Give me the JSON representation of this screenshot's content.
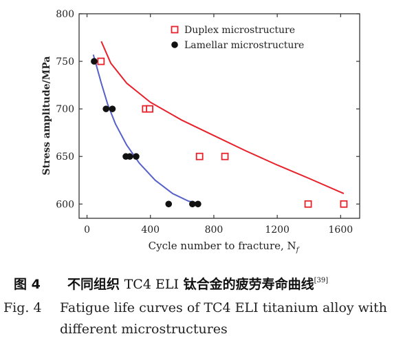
{
  "chart_data": {
    "type": "scatter",
    "xlabel": "Cycle number to fracture, N",
    "xlabel_subscript": "f",
    "ylabel": "Stress amplitude/MPa",
    "xlim": [
      -50,
      1720
    ],
    "ylim": [
      585,
      800
    ],
    "xticks": [
      0,
      400,
      800,
      1200,
      1600
    ],
    "yticks": [
      600,
      650,
      700,
      750,
      800
    ],
    "legend_position": "top-right",
    "series": [
      {
        "name": "Duplex microstructure",
        "marker": "open-square",
        "color": "#e8202a",
        "points": [
          [
            88,
            750
          ],
          [
            370,
            700
          ],
          [
            395,
            700
          ],
          [
            710,
            650
          ],
          [
            870,
            650
          ],
          [
            1395,
            600
          ],
          [
            1620,
            600
          ]
        ],
        "fit_curve": [
          [
            90,
            771
          ],
          [
            150,
            748
          ],
          [
            250,
            727
          ],
          [
            400,
            707
          ],
          [
            600,
            688
          ],
          [
            800,
            672
          ],
          [
            1000,
            656
          ],
          [
            1200,
            641
          ],
          [
            1400,
            627
          ],
          [
            1620,
            611
          ]
        ]
      },
      {
        "name": "Lamellar microstructure",
        "marker": "filled-circle",
        "color": "#111111",
        "points": [
          [
            45,
            750
          ],
          [
            120,
            700
          ],
          [
            160,
            700
          ],
          [
            245,
            650
          ],
          [
            270,
            650
          ],
          [
            310,
            650
          ],
          [
            515,
            600
          ],
          [
            665,
            600
          ],
          [
            700,
            600
          ]
        ],
        "fit_curve": [
          [
            40,
            757
          ],
          [
            60,
            745
          ],
          [
            90,
            727
          ],
          [
            130,
            705
          ],
          [
            180,
            684
          ],
          [
            250,
            662
          ],
          [
            330,
            643
          ],
          [
            430,
            625
          ],
          [
            540,
            611
          ],
          [
            640,
            603
          ],
          [
            700,
            601
          ]
        ]
      }
    ],
    "fit_colors": [
      "#e8202a",
      "#5560c8"
    ]
  },
  "caption": {
    "zh_fig": "图 4",
    "zh_text_a": "不同组织 ",
    "zh_text_latin": "TC4 ELI",
    "zh_text_b": " 钛合金的疲劳寿命曲线",
    "zh_ref": "[39]",
    "en_fig": "Fig. 4",
    "en_line1": "Fatigue life curves of TC4 ELI titanium alloy with",
    "en_line2": "different microstructures"
  }
}
